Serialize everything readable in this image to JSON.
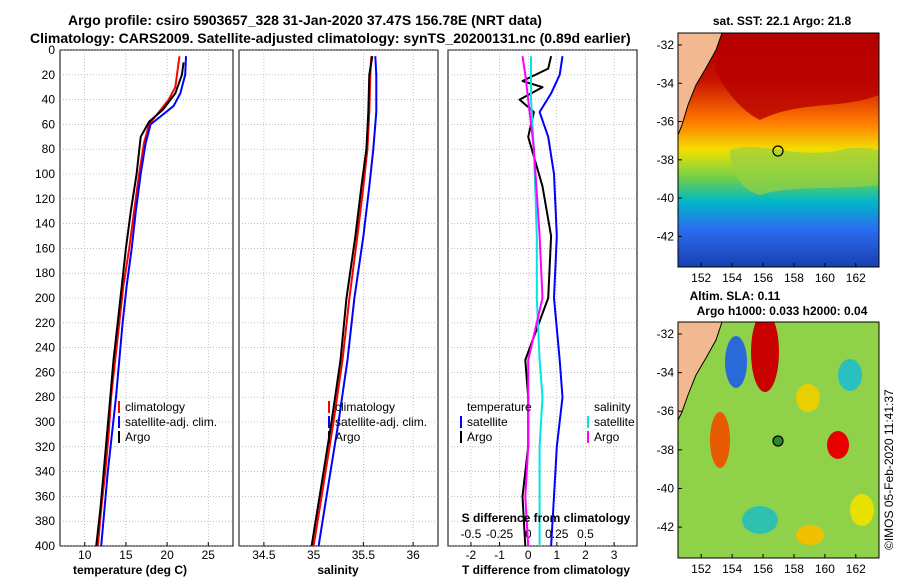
{
  "title": {
    "line1": "Argo profile: csiro 5903657_328 31-Jan-2020 37.47S 156.78E (NRT data)",
    "line2": "Climatology: CARS2009. Satellite-adjusted climatology: synTS_20200131.nc (0.89d earlier)"
  },
  "colors": {
    "climatology": "#ff0000",
    "satellite": "#0000ff",
    "argo": "#000000",
    "s_satellite": "#00e5e5",
    "s_argo": "#ff00ff"
  },
  "copyright": "©IMOS 05-Feb-2020 11:41:37",
  "chart_data": [
    {
      "type": "line",
      "name": "temperature-profile",
      "xlabel": "temperature (deg C)",
      "ylabel": "",
      "xlim": [
        7,
        28
      ],
      "ylim": [
        400,
        0
      ],
      "x_ticks": [
        10,
        15,
        20,
        25
      ],
      "y_ticks": [
        0,
        20,
        40,
        60,
        80,
        100,
        120,
        140,
        160,
        180,
        200,
        220,
        240,
        260,
        280,
        300,
        320,
        340,
        360,
        380,
        400
      ],
      "legend": [
        "climatology",
        "satellite-adj. clim.",
        "Argo"
      ],
      "series": [
        {
          "name": "climatology",
          "color": "#ff0000",
          "points": [
            [
              21.5,
              5
            ],
            [
              21.3,
              15
            ],
            [
              21,
              30
            ],
            [
              20.2,
              40
            ],
            [
              19,
              50
            ],
            [
              17.8,
              60
            ],
            [
              17.2,
              75
            ],
            [
              16.6,
              100
            ],
            [
              16,
              130
            ],
            [
              15.4,
              160
            ],
            [
              14.7,
              190
            ],
            [
              14.2,
              220
            ],
            [
              13.7,
              250
            ],
            [
              13.2,
              280
            ],
            [
              12.9,
              310
            ],
            [
              12.5,
              340
            ],
            [
              12,
              370
            ],
            [
              11.6,
              400
            ]
          ]
        },
        {
          "name": "satellite-adj. clim.",
          "color": "#0000ff",
          "points": [
            [
              22.3,
              5
            ],
            [
              22.2,
              20
            ],
            [
              21.6,
              35
            ],
            [
              20.8,
              45
            ],
            [
              19.5,
              52
            ],
            [
              18,
              60
            ],
            [
              17.4,
              75
            ],
            [
              16.8,
              100
            ],
            [
              16.2,
              130
            ],
            [
              15.7,
              160
            ],
            [
              15.1,
              190
            ],
            [
              14.6,
              220
            ],
            [
              14.2,
              250
            ],
            [
              13.8,
              280
            ],
            [
              13.3,
              310
            ],
            [
              12.8,
              340
            ],
            [
              12.4,
              370
            ],
            [
              12,
              400
            ]
          ]
        },
        {
          "name": "Argo",
          "color": "#000000",
          "points": [
            [
              22,
              10
            ],
            [
              21.8,
              20
            ],
            [
              21,
              35
            ],
            [
              19.5,
              48
            ],
            [
              17.8,
              58
            ],
            [
              16.8,
              70
            ],
            [
              16.3,
              100
            ],
            [
              15.6,
              130
            ],
            [
              15,
              160
            ],
            [
              14.5,
              190
            ],
            [
              14,
              220
            ],
            [
              13.5,
              250
            ],
            [
              13.1,
              280
            ],
            [
              12.7,
              310
            ],
            [
              12.3,
              340
            ],
            [
              11.9,
              370
            ],
            [
              11.4,
              400
            ]
          ]
        }
      ]
    },
    {
      "type": "line",
      "name": "salinity-profile",
      "xlabel": "salinity",
      "ylabel": "",
      "xlim": [
        34.25,
        36.25
      ],
      "ylim": [
        400,
        0
      ],
      "x_ticks": [
        34.5,
        35,
        35.5,
        36
      ],
      "legend": [
        "climatology",
        "satellite-adj. clim.",
        "Argo"
      ],
      "series": [
        {
          "name": "climatology",
          "color": "#ff0000",
          "points": [
            [
              35.58,
              5
            ],
            [
              35.57,
              20
            ],
            [
              35.56,
              50
            ],
            [
              35.54,
              80
            ],
            [
              35.5,
              110
            ],
            [
              35.44,
              150
            ],
            [
              35.36,
              200
            ],
            [
              35.29,
              250
            ],
            [
              35.2,
              300
            ],
            [
              35.1,
              350
            ],
            [
              35,
              400
            ]
          ]
        },
        {
          "name": "satellite-adj. clim.",
          "color": "#0000ff",
          "points": [
            [
              35.62,
              5
            ],
            [
              35.63,
              20
            ],
            [
              35.63,
              50
            ],
            [
              35.6,
              80
            ],
            [
              35.56,
              110
            ],
            [
              35.5,
              150
            ],
            [
              35.41,
              200
            ],
            [
              35.34,
              250
            ],
            [
              35.25,
              300
            ],
            [
              35.15,
              350
            ],
            [
              35.05,
              400
            ]
          ]
        },
        {
          "name": "Argo",
          "color": "#000000",
          "points": [
            [
              35.59,
              5
            ],
            [
              35.56,
              20
            ],
            [
              35.55,
              50
            ],
            [
              35.53,
              80
            ],
            [
              35.48,
              110
            ],
            [
              35.42,
              150
            ],
            [
              35.33,
              200
            ],
            [
              35.27,
              250
            ],
            [
              35.18,
              300
            ],
            [
              35.08,
              350
            ],
            [
              34.98,
              400
            ]
          ]
        }
      ]
    },
    {
      "type": "line",
      "name": "difference-profile",
      "xlabel": "T difference from climatology",
      "xlabel2": "S difference from climatology",
      "xlim": [
        -2.8,
        3.8
      ],
      "ylim": [
        400,
        0
      ],
      "x_ticks": [
        -2,
        -1,
        0,
        1,
        2,
        3
      ],
      "x2_ticks": [
        -0.5,
        -0.25,
        0,
        0.25,
        0.5
      ],
      "legend_temperature": {
        "title": "temperature",
        "items": [
          "satellite",
          "Argo"
        ]
      },
      "legend_salinity": {
        "title": "salinity",
        "items": [
          "satellite",
          "Argo"
        ]
      },
      "series": [
        {
          "name": "T satellite",
          "color": "#0000ff",
          "points": [
            [
              1.2,
              5
            ],
            [
              1.1,
              20
            ],
            [
              0.8,
              35
            ],
            [
              0.4,
              50
            ],
            [
              0.7,
              70
            ],
            [
              0.9,
              100
            ],
            [
              1,
              150
            ],
            [
              0.9,
              200
            ],
            [
              1.1,
              250
            ],
            [
              1.2,
              280
            ],
            [
              1,
              320
            ],
            [
              0.9,
              360
            ],
            [
              0.8,
              400
            ]
          ]
        },
        {
          "name": "T Argo",
          "color": "#000000",
          "points": [
            [
              0.8,
              5
            ],
            [
              0.7,
              15
            ],
            [
              -0.2,
              25
            ],
            [
              0.5,
              30
            ],
            [
              -0.3,
              40
            ],
            [
              0.2,
              50
            ],
            [
              0,
              70
            ],
            [
              0.5,
              110
            ],
            [
              0.8,
              150
            ],
            [
              0.7,
              200
            ],
            [
              -0.1,
              250
            ],
            [
              0,
              280
            ],
            [
              0,
              320
            ],
            [
              -0.2,
              360
            ],
            [
              -0.1,
              400
            ]
          ]
        },
        {
          "name": "S satellite",
          "color": "#00e5e5",
          "points": [
            [
              0.1,
              5
            ],
            [
              0.1,
              20
            ],
            [
              0.1,
              40
            ],
            [
              0.2,
              80
            ],
            [
              0.3,
              150
            ],
            [
              0.3,
              200
            ],
            [
              0.4,
              250
            ],
            [
              0.5,
              280
            ],
            [
              0.4,
              320
            ],
            [
              0.4,
              360
            ],
            [
              0.4,
              400
            ]
          ]
        },
        {
          "name": "S Argo",
          "color": "#ff00ff",
          "points": [
            [
              -0.2,
              5
            ],
            [
              -0.1,
              20
            ],
            [
              0,
              40
            ],
            [
              0.2,
              80
            ],
            [
              0.4,
              150
            ],
            [
              0.5,
              200
            ],
            [
              0,
              250
            ],
            [
              0,
              280
            ],
            [
              0,
              320
            ],
            [
              -0.1,
              360
            ],
            [
              0,
              400
            ]
          ]
        }
      ]
    }
  ],
  "maps": {
    "sst": {
      "title": "sat. SST: 22.1 Argo: 21.8",
      "lat_ticks": [
        -32,
        -34,
        -36,
        -38,
        -40,
        -42
      ],
      "lon_ticks": [
        152,
        154,
        156,
        158,
        160,
        162
      ],
      "float_marker": {
        "lon": 156.78,
        "lat": -37.47
      }
    },
    "sla": {
      "title_line1": "Altim. SLA: 0.11",
      "title_line2": "Argo h1000: 0.033 h2000: 0.04",
      "lat_ticks": [
        -32,
        -34,
        -36,
        -38,
        -40,
        -42
      ],
      "lon_ticks": [
        152,
        154,
        156,
        158,
        160,
        162
      ],
      "float_marker": {
        "lon": 156.78,
        "lat": -37.47
      }
    }
  }
}
